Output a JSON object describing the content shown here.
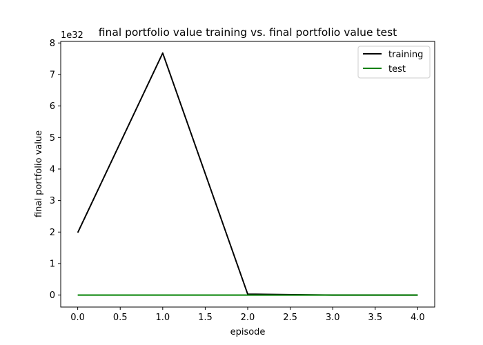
{
  "chart_data": {
    "type": "line",
    "title": "final portfolio value training vs. final portfolio value test",
    "xlabel": "episode",
    "ylabel": "final portfolio value",
    "offset_text": "1e32",
    "x": [
      0,
      1,
      2,
      3,
      4
    ],
    "xlim": [
      -0.2,
      4.2
    ],
    "ylim": [
      -0.38,
      8.05
    ],
    "x_ticks": [
      0.0,
      0.5,
      1.0,
      1.5,
      2.0,
      2.5,
      3.0,
      3.5,
      4.0
    ],
    "x_tick_labels": [
      "0.0",
      "0.5",
      "1.0",
      "1.5",
      "2.0",
      "2.5",
      "3.0",
      "3.5",
      "4.0"
    ],
    "y_ticks": [
      0,
      1,
      2,
      3,
      4,
      5,
      6,
      7,
      8
    ],
    "y_tick_labels": [
      "0",
      "1",
      "2",
      "3",
      "4",
      "5",
      "6",
      "7",
      "8"
    ],
    "grid": false,
    "legend_position": "top-right",
    "series": [
      {
        "name": "training",
        "color": "#000000",
        "values": [
          1.98,
          7.68,
          0.03,
          0.0,
          0.0
        ]
      },
      {
        "name": "test",
        "color": "#008000",
        "values": [
          0.0,
          0.0,
          0.0,
          0.0,
          0.0
        ]
      }
    ]
  }
}
